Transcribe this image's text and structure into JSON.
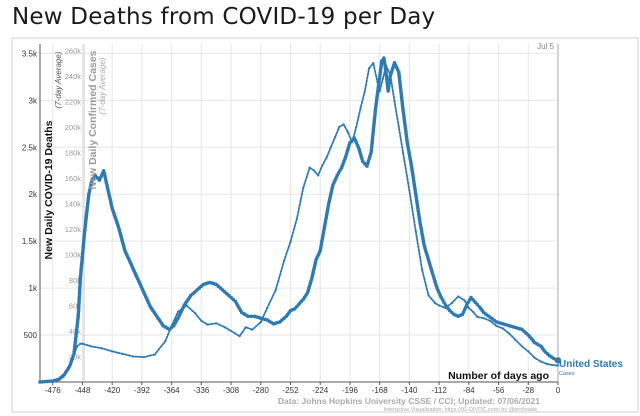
{
  "page": {
    "title": "New Deaths from COVID-19 per Day"
  },
  "chart_data": {
    "type": "line",
    "title": "New Deaths from COVID-19 per Day",
    "xlabel": "Number of days ago",
    "ylabel": "New Daily COVID-19 Deaths",
    "ylabel_sub": "(7-day Average)",
    "y2label": "New Daily Confirmed Cases",
    "y2label_sub": "(7-day Average)",
    "xlim": [
      -488,
      0
    ],
    "ylim": [
      0,
      3600
    ],
    "y2lim": [
      0,
      265000
    ],
    "x_ticks": [
      -476,
      -448,
      -420,
      -392,
      -364,
      -336,
      -308,
      -280,
      -252,
      -224,
      -196,
      -168,
      -140,
      -112,
      -84,
      -56,
      -28,
      0
    ],
    "y_ticks": [
      {
        "value": 500,
        "label": "500"
      },
      {
        "value": 1000,
        "label": "1k"
      },
      {
        "value": 1500,
        "label": "1.5k"
      },
      {
        "value": 2000,
        "label": "2k"
      },
      {
        "value": 2500,
        "label": "2.5k"
      },
      {
        "value": 3000,
        "label": "3k"
      },
      {
        "value": 3500,
        "label": "3.5k"
      }
    ],
    "y2_ticks": [
      {
        "value": 20000,
        "label": "20k"
      },
      {
        "value": 40000,
        "label": "40k"
      },
      {
        "value": 60000,
        "label": "60k"
      },
      {
        "value": 80000,
        "label": "80k"
      },
      {
        "value": 100000,
        "label": "100k"
      },
      {
        "value": 120000,
        "label": "120k"
      },
      {
        "value": 140000,
        "label": "140k"
      },
      {
        "value": 160000,
        "label": "160k"
      },
      {
        "value": 180000,
        "label": "180k"
      },
      {
        "value": 200000,
        "label": "200k"
      },
      {
        "value": 220000,
        "label": "220k"
      },
      {
        "value": 240000,
        "label": "240k"
      },
      {
        "value": 260000,
        "label": "260k"
      }
    ],
    "date_label": "Jul 5",
    "series": [
      {
        "name": "United States",
        "sublabel": "Cases",
        "color": "#2d7ab5",
        "axis": "right",
        "x": [
          -488,
          -476,
          -466,
          -460,
          -456,
          -453,
          -450,
          -448,
          -440,
          -430,
          -420,
          -410,
          -400,
          -390,
          -380,
          -370,
          -364,
          -358,
          -350,
          -342,
          -336,
          -330,
          -322,
          -314,
          -308,
          -300,
          -294,
          -288,
          -280,
          -274,
          -266,
          -258,
          -252,
          -246,
          -240,
          -234,
          -230,
          -226,
          -222,
          -218,
          -214,
          -210,
          -206,
          -202,
          -198,
          -194,
          -190,
          -186,
          -182,
          -178,
          -174,
          -170,
          -168,
          -165,
          -162,
          -158,
          -154,
          -150,
          -146,
          -140,
          -134,
          -128,
          -122,
          -116,
          -112,
          -106,
          -100,
          -94,
          -88,
          -84,
          -80,
          -76,
          -70,
          -64,
          -58,
          -52,
          -46,
          -40,
          -34,
          -28,
          -22,
          -16,
          -10,
          -6,
          -2,
          0
        ],
        "y": [
          0,
          600,
          4000,
          12000,
          22000,
          28000,
          30000,
          30000,
          28000,
          26500,
          24000,
          22000,
          20000,
          19500,
          21500,
          32000,
          44000,
          55000,
          60000,
          54000,
          48000,
          45000,
          46000,
          43000,
          40000,
          36000,
          43000,
          41000,
          47000,
          58000,
          72000,
          95000,
          110000,
          128000,
          152000,
          168000,
          166000,
          162000,
          170000,
          176000,
          184000,
          192000,
          200000,
          202000,
          196000,
          188000,
          200000,
          215000,
          228000,
          246000,
          250000,
          235000,
          228000,
          238000,
          248000,
          241000,
          220000,
          200000,
          180000,
          150000,
          118000,
          88000,
          68000,
          62000,
          60000,
          58000,
          62000,
          67000,
          64000,
          58000,
          55000,
          51000,
          50000,
          48000,
          44000,
          42000,
          38000,
          33000,
          28000,
          24000,
          19000,
          16000,
          14000,
          13500,
          13000,
          13000
        ]
      },
      {
        "name": "United States",
        "color": "#2d7ab5",
        "axis": "left",
        "x": [
          -488,
          -476,
          -470,
          -465,
          -460,
          -456,
          -452,
          -450,
          -446,
          -442,
          -439,
          -436,
          -432,
          -428,
          -424,
          -420,
          -414,
          -408,
          -402,
          -396,
          -390,
          -384,
          -378,
          -372,
          -366,
          -362,
          -358,
          -352,
          -346,
          -340,
          -334,
          -328,
          -322,
          -316,
          -310,
          -304,
          -298,
          -292,
          -286,
          -280,
          -274,
          -268,
          -262,
          -256,
          -252,
          -248,
          -244,
          -240,
          -236,
          -232,
          -228,
          -224,
          -220,
          -216,
          -212,
          -208,
          -204,
          -200,
          -196,
          -192,
          -188,
          -184,
          -180,
          -176,
          -172,
          -168,
          -166,
          -164,
          -162,
          -160,
          -158,
          -154,
          -150,
          -146,
          -142,
          -138,
          -134,
          -130,
          -126,
          -122,
          -118,
          -114,
          -110,
          -106,
          -102,
          -98,
          -94,
          -90,
          -86,
          -82,
          -78,
          -74,
          -70,
          -64,
          -58,
          -52,
          -46,
          -40,
          -34,
          -28,
          -22,
          -16,
          -12,
          -8,
          -4,
          0
        ],
        "y": [
          0,
          10,
          30,
          80,
          170,
          300,
          700,
          1100,
          1600,
          2000,
          2150,
          2200,
          2150,
          2250,
          2050,
          1850,
          1650,
          1400,
          1250,
          1100,
          950,
          800,
          700,
          600,
          560,
          600,
          680,
          820,
          920,
          980,
          1040,
          1060,
          1040,
          980,
          920,
          860,
          740,
          700,
          700,
          680,
          660,
          620,
          640,
          700,
          760,
          780,
          830,
          880,
          950,
          1100,
          1300,
          1400,
          1650,
          1900,
          2100,
          2200,
          2280,
          2400,
          2550,
          2600,
          2500,
          2350,
          2300,
          2450,
          2900,
          3250,
          3420,
          3450,
          3300,
          3100,
          3260,
          3400,
          3300,
          2900,
          2550,
          2300,
          2000,
          1700,
          1450,
          1300,
          1150,
          1000,
          900,
          820,
          760,
          720,
          700,
          720,
          820,
          900,
          850,
          800,
          740,
          690,
          640,
          620,
          600,
          580,
          560,
          500,
          420,
          380,
          320,
          280,
          250,
          230
        ]
      }
    ],
    "annotations": [
      {
        "label": "United States",
        "sublabel": "Cases"
      },
      {
        "label": "Number of days ago"
      }
    ],
    "source": "Data: Johns Hopkins University CSSE / CCI; Updated: 07/06/2021",
    "credit": "Interactive Visualization: https://91-DIVOC.com/ by @profwade_"
  }
}
